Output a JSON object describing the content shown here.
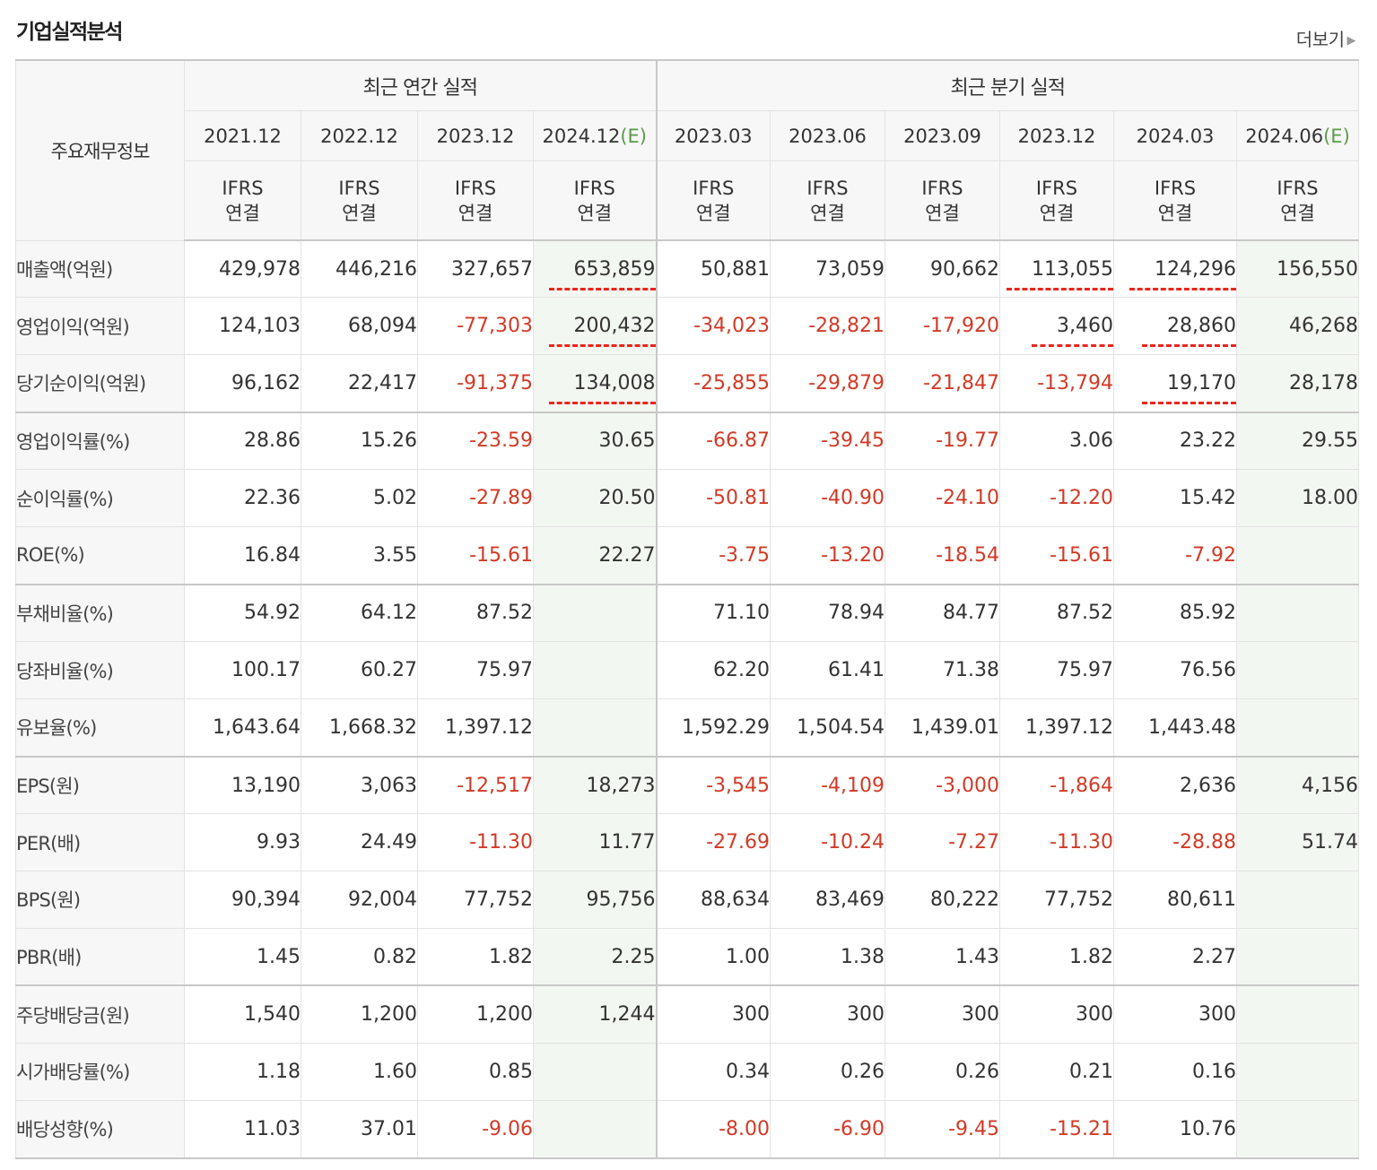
{
  "header": {
    "title": "기업실적분석",
    "more": "더보기"
  },
  "table": {
    "row_header": "주요재무정보",
    "groups": [
      {
        "label": "최근 연간 실적"
      },
      {
        "label": "최근 분기 실적"
      }
    ],
    "columns": [
      {
        "date": "2021.12",
        "est": "",
        "std1": "IFRS",
        "std2": "연결"
      },
      {
        "date": "2022.12",
        "est": "",
        "std1": "IFRS",
        "std2": "연결"
      },
      {
        "date": "2023.12",
        "est": "",
        "std1": "IFRS",
        "std2": "연결"
      },
      {
        "date": "2024.12",
        "est": "(E)",
        "std1": "IFRS",
        "std2": "연결"
      },
      {
        "date": "2023.03",
        "est": "",
        "std1": "IFRS",
        "std2": "연결"
      },
      {
        "date": "2023.06",
        "est": "",
        "std1": "IFRS",
        "std2": "연결"
      },
      {
        "date": "2023.09",
        "est": "",
        "std1": "IFRS",
        "std2": "연결"
      },
      {
        "date": "2023.12",
        "est": "",
        "std1": "IFRS",
        "std2": "연결"
      },
      {
        "date": "2024.03",
        "est": "",
        "std1": "IFRS",
        "std2": "연결"
      },
      {
        "date": "2024.06",
        "est": "(E)",
        "std1": "IFRS",
        "std2": "연결"
      }
    ],
    "rows": [
      {
        "label": "매출액(억원)",
        "values": [
          "429,978",
          "446,216",
          "327,657",
          "653,859",
          "50,881",
          "73,059",
          "90,662",
          "113,055",
          "124,296",
          "156,550"
        ]
      },
      {
        "label": "영업이익(억원)",
        "values": [
          "124,103",
          "68,094",
          "-77,303",
          "200,432",
          "-34,023",
          "-28,821",
          "-17,920",
          "3,460",
          "28,860",
          "46,268"
        ]
      },
      {
        "label": "당기순이익(억원)",
        "values": [
          "96,162",
          "22,417",
          "-91,375",
          "134,008",
          "-25,855",
          "-29,879",
          "-21,847",
          "-13,794",
          "19,170",
          "28,178"
        ]
      },
      {
        "label": "영업이익률(%)",
        "values": [
          "28.86",
          "15.26",
          "-23.59",
          "30.65",
          "-66.87",
          "-39.45",
          "-19.77",
          "3.06",
          "23.22",
          "29.55"
        ]
      },
      {
        "label": "순이익률(%)",
        "values": [
          "22.36",
          "5.02",
          "-27.89",
          "20.50",
          "-50.81",
          "-40.90",
          "-24.10",
          "-12.20",
          "15.42",
          "18.00"
        ]
      },
      {
        "label": "ROE(%)",
        "values": [
          "16.84",
          "3.55",
          "-15.61",
          "22.27",
          "-3.75",
          "-13.20",
          "-18.54",
          "-15.61",
          "-7.92",
          ""
        ]
      },
      {
        "label": "부채비율(%)",
        "values": [
          "54.92",
          "64.12",
          "87.52",
          "",
          "71.10",
          "78.94",
          "84.77",
          "87.52",
          "85.92",
          ""
        ]
      },
      {
        "label": "당좌비율(%)",
        "values": [
          "100.17",
          "60.27",
          "75.97",
          "",
          "62.20",
          "61.41",
          "71.38",
          "75.97",
          "76.56",
          ""
        ]
      },
      {
        "label": "유보율(%)",
        "values": [
          "1,643.64",
          "1,668.32",
          "1,397.12",
          "",
          "1,592.29",
          "1,504.54",
          "1,439.01",
          "1,397.12",
          "1,443.48",
          ""
        ]
      },
      {
        "label": "EPS(원)",
        "values": [
          "13,190",
          "3,063",
          "-12,517",
          "18,273",
          "-3,545",
          "-4,109",
          "-3,000",
          "-1,864",
          "2,636",
          "4,156"
        ]
      },
      {
        "label": "PER(배)",
        "values": [
          "9.93",
          "24.49",
          "-11.30",
          "11.77",
          "-27.69",
          "-10.24",
          "-7.27",
          "-11.30",
          "-28.88",
          "51.74"
        ]
      },
      {
        "label": "BPS(원)",
        "values": [
          "90,394",
          "92,004",
          "77,752",
          "95,756",
          "88,634",
          "83,469",
          "80,222",
          "77,752",
          "80,611",
          ""
        ]
      },
      {
        "label": "PBR(배)",
        "values": [
          "1.45",
          "0.82",
          "1.82",
          "2.25",
          "1.00",
          "1.38",
          "1.43",
          "1.82",
          "2.27",
          ""
        ]
      },
      {
        "label": "주당배당금(원)",
        "values": [
          "1,540",
          "1,200",
          "1,200",
          "1,244",
          "300",
          "300",
          "300",
          "300",
          "300",
          ""
        ]
      },
      {
        "label": "시가배당률(%)",
        "values": [
          "1.18",
          "1.60",
          "0.85",
          "",
          "0.34",
          "0.26",
          "0.26",
          "0.21",
          "0.16",
          ""
        ]
      },
      {
        "label": "배당성향(%)",
        "values": [
          "11.03",
          "37.01",
          "-9.06",
          "",
          "-8.00",
          "-6.90",
          "-9.45",
          "-15.21",
          "10.76",
          ""
        ]
      }
    ],
    "highlights": [
      {
        "row": 0,
        "cols": [
          3,
          7,
          8
        ]
      },
      {
        "row": 1,
        "cols": [
          3,
          7,
          8
        ]
      },
      {
        "row": 2,
        "cols": [
          3,
          8
        ]
      }
    ],
    "colors": {
      "negative": "#d13a26",
      "ifrs": "#e06b1f",
      "estimate_bg": "#f3f7f1",
      "highlight_dash": "#e8261c"
    }
  }
}
